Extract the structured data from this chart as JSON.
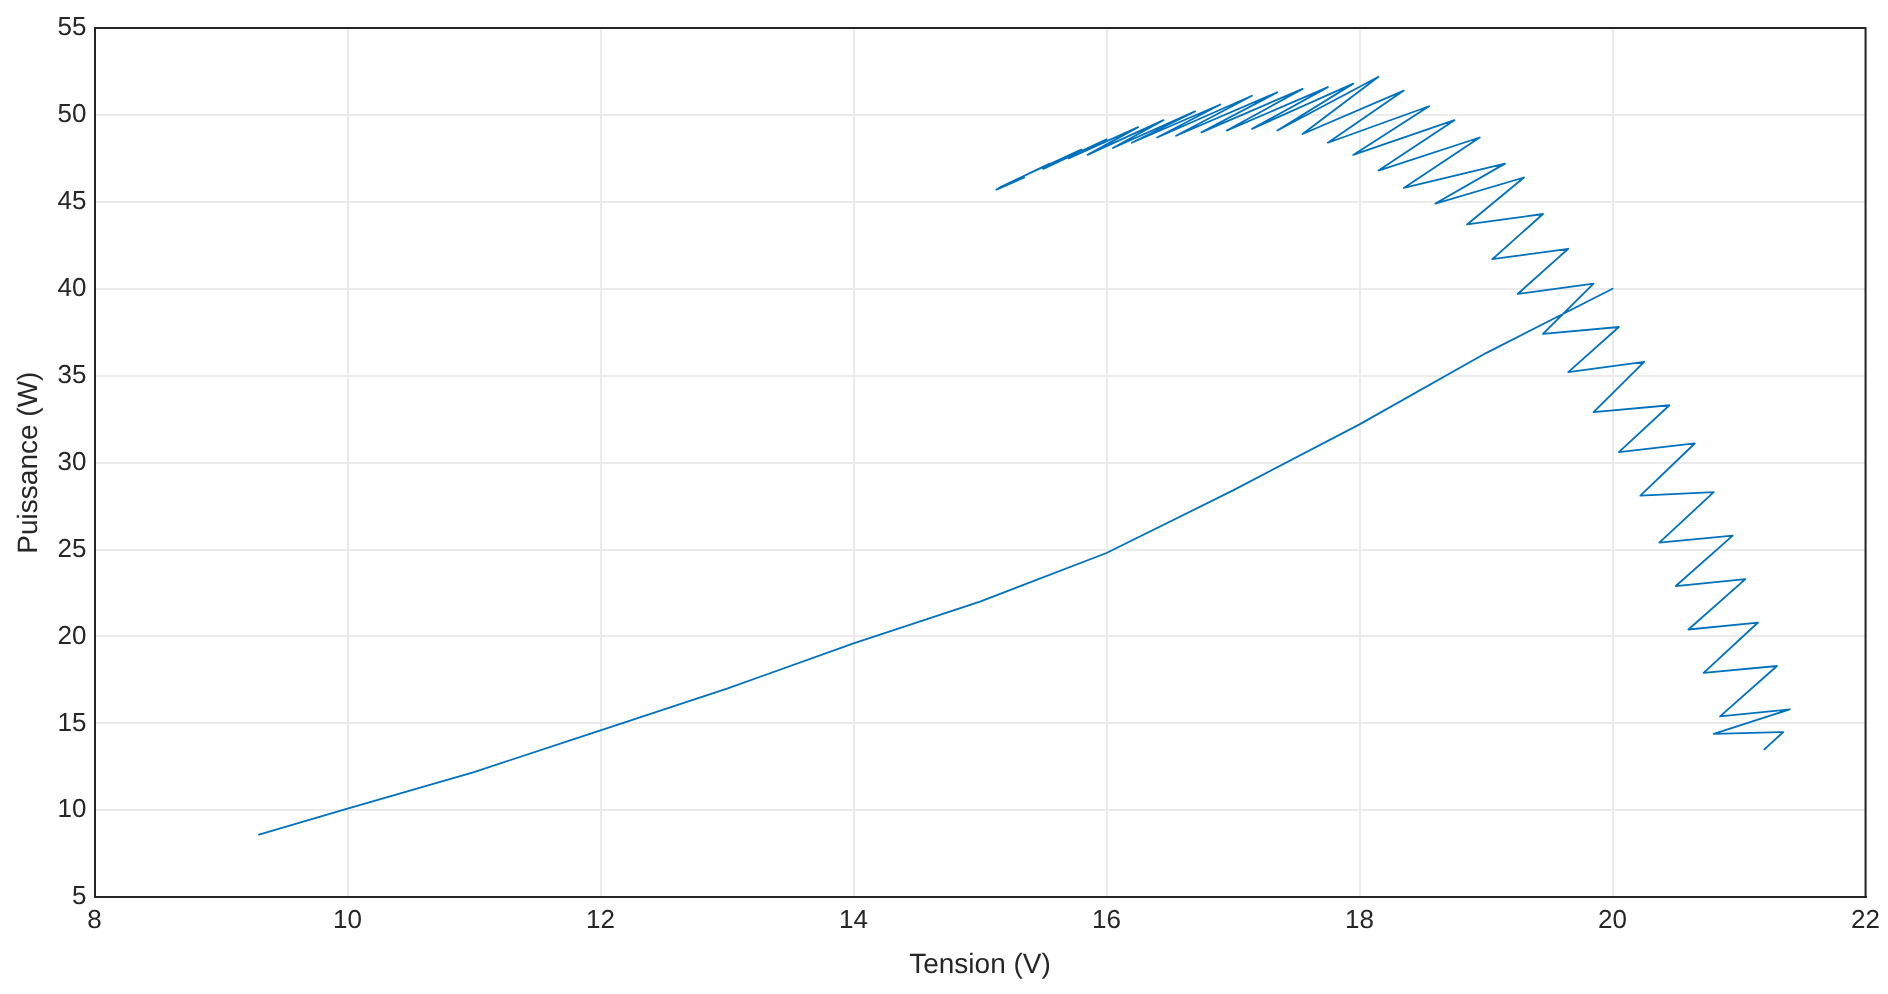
{
  "chart_data": {
    "type": "line",
    "xlabel": "Tension (V)",
    "ylabel": "Puissance (W)",
    "xlim": [
      8,
      22
    ],
    "xticks": [
      8,
      10,
      12,
      14,
      16,
      18,
      20,
      22
    ],
    "ylim": [
      5,
      55
    ],
    "yticks": [
      5,
      10,
      15,
      20,
      25,
      30,
      35,
      40,
      45,
      50,
      55
    ],
    "grid": true,
    "legend": false,
    "marker": "none",
    "line_style": "solid",
    "series": [
      {
        "color": "#0072bd",
        "x": [
          9.3,
          10,
          11,
          12,
          13,
          14,
          15,
          16,
          17,
          18,
          19,
          20,
          null,
          15.13,
          15.35,
          15.15,
          15.55,
          15.35,
          15.8,
          15.5,
          16.0,
          15.7,
          16.25,
          15.85,
          16.45,
          16.05,
          16.7,
          16.2,
          16.9,
          16.4,
          17.15,
          16.55,
          17.35,
          16.75,
          17.55,
          16.95,
          17.75,
          17.15,
          17.95,
          17.35,
          18.15,
          17.55,
          18.35,
          17.75,
          18.55,
          17.95,
          18.75,
          18.15,
          18.95,
          18.35,
          19.15,
          18.6,
          19.3,
          18.85,
          19.45,
          19.05,
          19.65,
          19.25,
          19.85,
          19.45,
          20.05,
          19.65,
          20.25,
          19.85,
          20.45,
          20.05,
          20.65,
          20.22,
          20.8,
          20.37,
          20.95,
          20.5,
          21.05,
          20.6,
          21.15,
          20.72,
          21.3,
          20.85,
          21.4,
          20.8,
          21.35,
          21.2
        ],
        "values": [
          8.6,
          10.1,
          12.2,
          14.6,
          17.0,
          19.6,
          22.0,
          24.8,
          28.4,
          32.2,
          36.3,
          40.0,
          null,
          45.7,
          46.4,
          45.8,
          47.2,
          46.5,
          48.0,
          46.9,
          48.6,
          47.5,
          49.3,
          47.7,
          49.7,
          48.1,
          50.2,
          48.4,
          50.6,
          48.7,
          51.1,
          48.8,
          51.3,
          49.0,
          51.5,
          49.1,
          51.6,
          49.2,
          51.8,
          49.1,
          52.2,
          48.9,
          51.4,
          48.4,
          50.5,
          47.7,
          49.7,
          46.8,
          48.7,
          45.8,
          47.2,
          44.9,
          46.4,
          43.7,
          44.3,
          41.7,
          42.3,
          39.7,
          40.3,
          37.4,
          37.8,
          35.2,
          35.8,
          32.9,
          33.3,
          30.6,
          31.1,
          28.1,
          28.3,
          25.4,
          25.8,
          22.9,
          23.3,
          20.4,
          20.8,
          17.9,
          18.3,
          15.4,
          15.8,
          14.4,
          14.5,
          13.5
        ]
      }
    ]
  }
}
